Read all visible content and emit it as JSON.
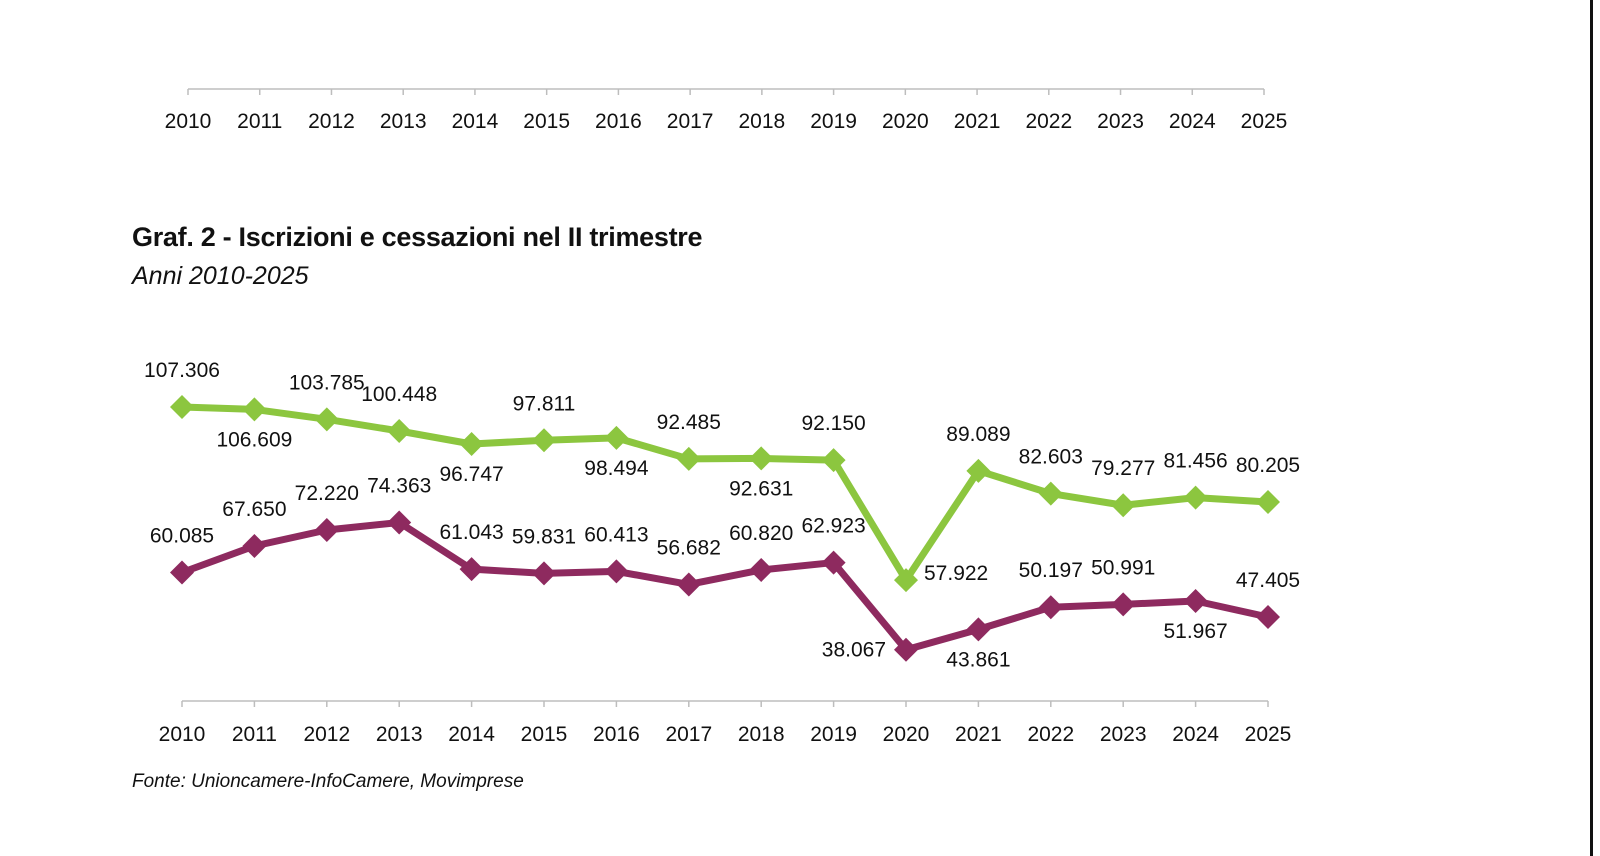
{
  "top_axis": {
    "tick_labels": [
      "2010",
      "2011",
      "2012",
      "2013",
      "2014",
      "2015",
      "2016",
      "2017",
      "2018",
      "2019",
      "2020",
      "2021",
      "2022",
      "2023",
      "2024",
      "2025"
    ]
  },
  "header": {
    "title": "Graf. 2 - Iscrizioni e cessazioni nel II trimestre",
    "subtitle": "Anni 2010-2025"
  },
  "footer": {
    "source": "Fonte: Unioncamere-InfoCamere, Movimprese"
  },
  "chart_data": {
    "type": "line",
    "title": "Graf. 2 - Iscrizioni e cessazioni nel II trimestre",
    "subtitle": "Anni 2010-2025",
    "xlabel": "",
    "ylabel": "",
    "categories": [
      "2010",
      "2011",
      "2012",
      "2013",
      "2014",
      "2015",
      "2016",
      "2017",
      "2018",
      "2019",
      "2020",
      "2021",
      "2022",
      "2023",
      "2024",
      "2025"
    ],
    "ylim": [
      30000,
      115000
    ],
    "grid": false,
    "legend": "none",
    "series": [
      {
        "color": "#8cc63f",
        "marker": "diamond",
        "values": [
          107306,
          106609,
          103785,
          100448,
          96747,
          97811,
          98494,
          92485,
          92631,
          92150,
          57922,
          89089,
          82603,
          79277,
          81456,
          80205
        ],
        "labels": [
          "107.306",
          "106.609",
          "103.785",
          "100.448",
          "96.747",
          "97.811",
          "98.494",
          "92.485",
          "92.631",
          "92.150",
          "57.922",
          "89.089",
          "82.603",
          "79.277",
          "81.456",
          "80.205"
        ],
        "label_positions": [
          "above",
          "below",
          "above",
          "above",
          "below",
          "above",
          "below",
          "above",
          "below",
          "above",
          "right",
          "above",
          "above",
          "above",
          "above",
          "above"
        ]
      },
      {
        "color": "#8e2a5f",
        "marker": "diamond",
        "values": [
          60085,
          67650,
          72220,
          74363,
          61043,
          59831,
          60413,
          56682,
          60820,
          62923,
          38067,
          43861,
          50197,
          50991,
          51967,
          47405
        ],
        "labels": [
          "60.085",
          "67.650",
          "72.220",
          "74.363",
          "61.043",
          "59.831",
          "60.413",
          "56.682",
          "60.820",
          "62.923",
          "38.067",
          "43.861",
          "50.197",
          "50.991",
          "51.967",
          "47.405"
        ],
        "label_positions": [
          "above",
          "above",
          "above",
          "above",
          "above",
          "above",
          "above",
          "above",
          "above",
          "above",
          "left",
          "below",
          "above",
          "above",
          "below",
          "above"
        ]
      }
    ]
  }
}
